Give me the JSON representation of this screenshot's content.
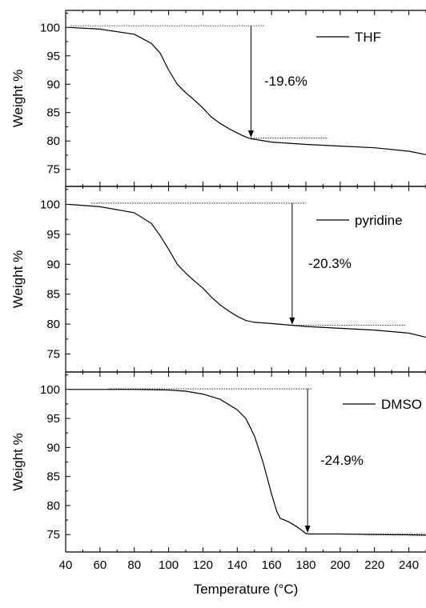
{
  "chart_data": [
    {
      "type": "line",
      "ylabel": "Weight %",
      "xlim": [
        40,
        250
      ],
      "ylim": [
        72,
        103
      ],
      "yticks": [
        75,
        80,
        85,
        90,
        95,
        100
      ],
      "series": [
        {
          "name": "THF",
          "x": [
            42,
            60,
            80,
            90,
            95,
            100,
            105,
            110,
            115,
            120,
            125,
            130,
            135,
            140,
            145,
            148,
            160,
            180,
            200,
            220,
            240,
            250
          ],
          "y": [
            100,
            99.7,
            98.8,
            97.2,
            95.5,
            92.5,
            90,
            88.5,
            87.2,
            85.8,
            84.2,
            83.1,
            82.2,
            81.4,
            80.7,
            80.4,
            79.8,
            79.4,
            79.1,
            78.8,
            78.2,
            77.6
          ]
        }
      ],
      "annotations": [
        {
          "text": "-19.6%",
          "x_from": 148,
          "y_from": 100.3,
          "y_to": 80.6
        },
        {
          "line": "upper",
          "x": [
            43,
            156
          ],
          "y": 100.3
        },
        {
          "line": "lower",
          "x": [
            148,
            193
          ],
          "y": 80.5
        }
      ]
    },
    {
      "type": "line",
      "ylabel": "Weight %",
      "xlim": [
        40,
        250
      ],
      "ylim": [
        72,
        103
      ],
      "yticks": [
        75,
        80,
        85,
        90,
        95,
        100
      ],
      "series": [
        {
          "name": "pyridine",
          "x": [
            42,
            60,
            80,
            90,
            95,
            100,
            105,
            110,
            115,
            120,
            125,
            130,
            135,
            140,
            145,
            150,
            160,
            172,
            180,
            200,
            220,
            240,
            250
          ],
          "y": [
            100,
            99.6,
            98.6,
            96.8,
            94.8,
            92.5,
            90,
            88.5,
            87.2,
            86,
            84.5,
            83.2,
            82.2,
            81.3,
            80.6,
            80.3,
            80.1,
            79.8,
            79.6,
            79.3,
            79,
            78.5,
            77.8
          ]
        }
      ],
      "annotations": [
        {
          "text": "-20.3%",
          "x_from": 172,
          "y_from": 100.2,
          "y_to": 79.9
        },
        {
          "line": "upper",
          "x": [
            55,
            180
          ],
          "y": 100.2
        },
        {
          "line": "lower",
          "x": [
            170,
            238
          ],
          "y": 79.8
        }
      ]
    },
    {
      "type": "line",
      "ylabel": "Weight %",
      "xlabel": "Temperature (°C)",
      "xlim": [
        40,
        250
      ],
      "ylim": [
        72,
        103
      ],
      "yticks": [
        75,
        80,
        85,
        90,
        95,
        100
      ],
      "xticks": [
        40,
        60,
        80,
        100,
        120,
        140,
        160,
        180,
        200,
        220,
        240
      ],
      "series": [
        {
          "name": "DMSO",
          "x": [
            42,
            80,
            100,
            110,
            120,
            130,
            140,
            145,
            150,
            155,
            160,
            163,
            165,
            170,
            175,
            180,
            182,
            200,
            220,
            240,
            250
          ],
          "y": [
            100,
            100,
            99.9,
            99.7,
            99.2,
            98.3,
            96.5,
            95,
            92,
            87.5,
            82,
            79,
            77.8,
            77.2,
            76.3,
            75.2,
            75.1,
            75.1,
            75,
            74.95,
            74.9
          ]
        }
      ],
      "annotations": [
        {
          "text": "-24.9%",
          "x_from": 181,
          "y_from": 100.1,
          "y_to": 75.3
        },
        {
          "line": "upper",
          "x": [
            65,
            184
          ],
          "y": 100.1
        },
        {
          "line": "lower",
          "x": [
            180,
            250
          ],
          "y": 75.1
        }
      ]
    }
  ]
}
